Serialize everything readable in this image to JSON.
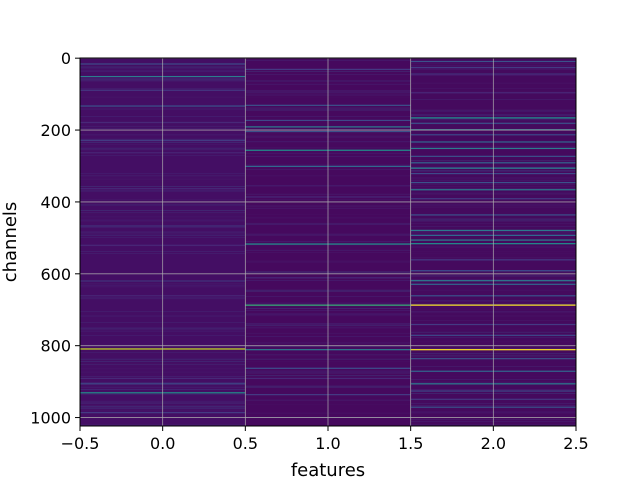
{
  "chart_data": {
    "type": "heatmap",
    "title": "",
    "xlabel": "features",
    "ylabel": "channels",
    "xlim": [
      -0.5,
      2.5
    ],
    "ylim": [
      1023.5,
      -0.5
    ],
    "x_ticks": [
      -0.5,
      0.0,
      0.5,
      1.0,
      1.5,
      2.0,
      2.5
    ],
    "x_tick_labels": [
      "−0.5",
      "0.0",
      "0.5",
      "1.0",
      "1.5",
      "2.0",
      "2.5"
    ],
    "y_ticks": [
      0,
      200,
      400,
      600,
      800,
      1000
    ],
    "y_tick_labels": [
      "0",
      "200",
      "400",
      "600",
      "800",
      "1000"
    ],
    "grid": true,
    "colormap": "viridis",
    "columns": [
      0,
      1,
      2
    ],
    "background_colors": [
      "#440e64",
      "#46095e",
      "#450a5e"
    ],
    "highlights": [
      {
        "feature": 0,
        "channel": 15,
        "color": "#3d4c89"
      },
      {
        "feature": 0,
        "channel": 50,
        "color": "#2c7d8e"
      },
      {
        "feature": 0,
        "channel": 88,
        "color": "#443a83"
      },
      {
        "feature": 0,
        "channel": 132,
        "color": "#3b528b"
      },
      {
        "feature": 0,
        "channel": 178,
        "color": "#482878"
      },
      {
        "feature": 0,
        "channel": 228,
        "color": "#443a83"
      },
      {
        "feature": 0,
        "channel": 262,
        "color": "#482576"
      },
      {
        "feature": 0,
        "channel": 362,
        "color": "#482878"
      },
      {
        "feature": 0,
        "channel": 520,
        "color": "#482576"
      },
      {
        "feature": 0,
        "channel": 660,
        "color": "#482576"
      },
      {
        "feature": 0,
        "channel": 808,
        "color": "#c8e020"
      },
      {
        "feature": 0,
        "channel": 890,
        "color": "#482878"
      },
      {
        "feature": 0,
        "channel": 905,
        "color": "#3e4989"
      },
      {
        "feature": 0,
        "channel": 930,
        "color": "#21918c"
      },
      {
        "feature": 0,
        "channel": 985,
        "color": "#443a83"
      },
      {
        "feature": 1,
        "channel": 30,
        "color": "#443a83"
      },
      {
        "feature": 1,
        "channel": 130,
        "color": "#3b528b"
      },
      {
        "feature": 1,
        "channel": 172,
        "color": "#3e4989"
      },
      {
        "feature": 1,
        "channel": 190,
        "color": "#2c7d8e"
      },
      {
        "feature": 1,
        "channel": 203,
        "color": "#3b528b"
      },
      {
        "feature": 1,
        "channel": 255,
        "color": "#21918c"
      },
      {
        "feature": 1,
        "channel": 300,
        "color": "#31688e"
      },
      {
        "feature": 1,
        "channel": 385,
        "color": "#482878"
      },
      {
        "feature": 1,
        "channel": 516,
        "color": "#21918c"
      },
      {
        "feature": 1,
        "channel": 610,
        "color": "#482878"
      },
      {
        "feature": 1,
        "channel": 686,
        "color": "#35b779"
      },
      {
        "feature": 1,
        "channel": 810,
        "color": "#2c7d8e"
      },
      {
        "feature": 1,
        "channel": 862,
        "color": "#3e4989"
      },
      {
        "feature": 1,
        "channel": 890,
        "color": "#482878"
      },
      {
        "feature": 1,
        "channel": 935,
        "color": "#443a83"
      },
      {
        "feature": 2,
        "channel": 8,
        "color": "#3b528b"
      },
      {
        "feature": 2,
        "channel": 25,
        "color": "#443a83"
      },
      {
        "feature": 2,
        "channel": 45,
        "color": "#482878"
      },
      {
        "feature": 2,
        "channel": 95,
        "color": "#482878"
      },
      {
        "feature": 2,
        "channel": 165,
        "color": "#21918c"
      },
      {
        "feature": 2,
        "channel": 180,
        "color": "#3b528b"
      },
      {
        "feature": 2,
        "channel": 198,
        "color": "#2c7d8e"
      },
      {
        "feature": 2,
        "channel": 212,
        "color": "#3e4989"
      },
      {
        "feature": 2,
        "channel": 232,
        "color": "#31688e"
      },
      {
        "feature": 2,
        "channel": 250,
        "color": "#2c7d8e"
      },
      {
        "feature": 2,
        "channel": 272,
        "color": "#3b528b"
      },
      {
        "feature": 2,
        "channel": 290,
        "color": "#31688e"
      },
      {
        "feature": 2,
        "channel": 305,
        "color": "#2c7d8e"
      },
      {
        "feature": 2,
        "channel": 320,
        "color": "#3e4989"
      },
      {
        "feature": 2,
        "channel": 345,
        "color": "#3b528b"
      },
      {
        "feature": 2,
        "channel": 365,
        "color": "#2c7d8e"
      },
      {
        "feature": 2,
        "channel": 390,
        "color": "#443a83"
      },
      {
        "feature": 2,
        "channel": 435,
        "color": "#3b528b"
      },
      {
        "feature": 2,
        "channel": 478,
        "color": "#2c7d8e"
      },
      {
        "feature": 2,
        "channel": 492,
        "color": "#31688e"
      },
      {
        "feature": 2,
        "channel": 505,
        "color": "#2c7d8e"
      },
      {
        "feature": 2,
        "channel": 515,
        "color": "#21918c"
      },
      {
        "feature": 2,
        "channel": 560,
        "color": "#443a83"
      },
      {
        "feature": 2,
        "channel": 590,
        "color": "#3e4989"
      },
      {
        "feature": 2,
        "channel": 618,
        "color": "#2c7d8e"
      },
      {
        "feature": 2,
        "channel": 628,
        "color": "#31688e"
      },
      {
        "feature": 2,
        "channel": 660,
        "color": "#3b528b"
      },
      {
        "feature": 2,
        "channel": 686,
        "color": "#fde725"
      },
      {
        "feature": 2,
        "channel": 740,
        "color": "#443a83"
      },
      {
        "feature": 2,
        "channel": 770,
        "color": "#3e4989"
      },
      {
        "feature": 2,
        "channel": 810,
        "color": "#fde725"
      },
      {
        "feature": 2,
        "channel": 835,
        "color": "#3b528b"
      },
      {
        "feature": 2,
        "channel": 870,
        "color": "#31688e"
      },
      {
        "feature": 2,
        "channel": 905,
        "color": "#2c7d8e"
      },
      {
        "feature": 2,
        "channel": 925,
        "color": "#3e4989"
      },
      {
        "feature": 2,
        "channel": 948,
        "color": "#443a83"
      },
      {
        "feature": 2,
        "channel": 970,
        "color": "#3b528b"
      }
    ]
  }
}
